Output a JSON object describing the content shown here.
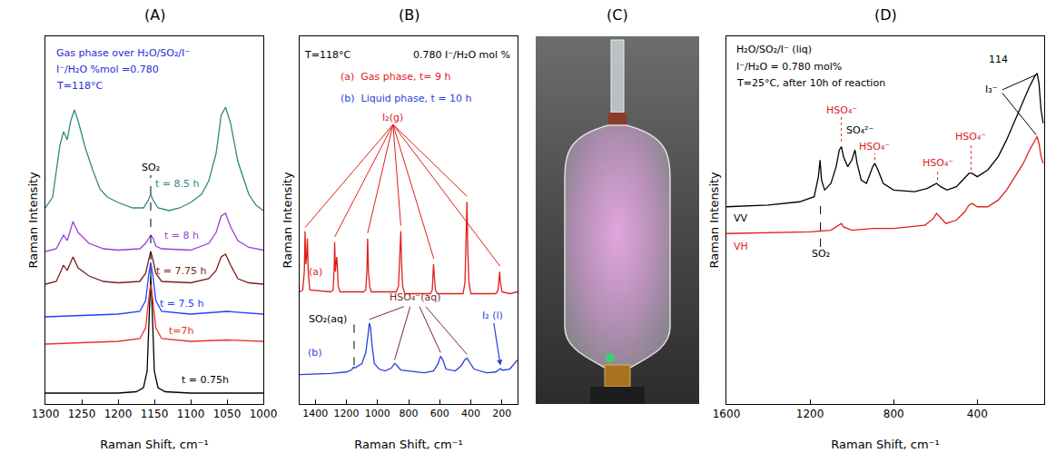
{
  "chart_data": [
    {
      "type": "line",
      "title": "(A)",
      "x_label": "Raman Shift, cm⁻¹",
      "y_label": "Raman Intensity",
      "xlim": [
        1300,
        1000
      ],
      "xticks": [
        1300,
        1250,
        1200,
        1150,
        1100,
        1050,
        1000
      ],
      "ylim": [
        0,
        135
      ],
      "grid": false,
      "tick_labels": "x",
      "notes": [
        {
          "text": "Gas phase over H₂O/SO₂/I⁻",
          "x": 1288,
          "y": 129,
          "color": "#2b2bd6"
        },
        {
          "text": "I⁻/H₂O %mol =0.780",
          "x": 1288,
          "y": 123,
          "color": "#2b2bd6"
        },
        {
          "text": "T=118°C",
          "x": 1288,
          "y": 117,
          "color": "#2b2bd6"
        }
      ],
      "annotations": [
        {
          "text": "SO₂",
          "x": 1155,
          "y": 87,
          "color": "#000000",
          "line_style": "dashed",
          "lines": [
            [
              1155,
              47,
              1155,
              84
            ]
          ]
        }
      ],
      "series": [
        {
          "name": "t = 0.75h",
          "color": "#000000",
          "label_at": [
            1080,
            9
          ],
          "x": [
            1300,
            1200,
            1175,
            1165,
            1160,
            1157,
            1155,
            1153,
            1150,
            1145,
            1135,
            1100,
            1000
          ],
          "values": [
            4,
            4,
            4.5,
            6,
            12,
            35,
            47,
            35,
            12,
            6,
            4.5,
            4,
            4
          ]
        },
        {
          "name": "t=7h",
          "color": "#e8322c",
          "label_at": [
            1112,
            27
          ],
          "x": [
            1300,
            1250,
            1200,
            1170,
            1162,
            1158,
            1155,
            1152,
            1148,
            1140,
            1100,
            1050,
            1000
          ],
          "values": [
            22,
            22.5,
            23,
            24,
            28,
            38,
            44,
            38,
            28,
            24,
            23,
            23.5,
            23
          ]
        },
        {
          "name": "t = 7.5 h",
          "color": "#2040ff",
          "label_at": [
            1112,
            37
          ],
          "x": [
            1300,
            1250,
            1200,
            1170,
            1162,
            1158,
            1155,
            1152,
            1148,
            1140,
            1100,
            1050,
            1000
          ],
          "values": [
            32,
            32.5,
            33,
            34,
            38,
            47,
            52,
            47,
            38,
            34,
            33,
            34,
            33
          ]
        },
        {
          "name": "t = 7.75 h",
          "color": "#7b1e1e",
          "label_at": [
            1112,
            49
          ],
          "x": [
            1300,
            1285,
            1275,
            1270,
            1262,
            1255,
            1240,
            1220,
            1200,
            1170,
            1162,
            1158,
            1155,
            1152,
            1148,
            1140,
            1100,
            1075,
            1065,
            1058,
            1052,
            1045,
            1035,
            1020,
            1000
          ],
          "values": [
            44,
            45,
            51,
            49,
            54,
            50,
            47,
            45,
            44.5,
            45,
            48,
            53,
            56,
            53,
            48,
            45,
            44.5,
            46,
            49,
            54,
            55,
            51,
            46,
            44.5,
            44
          ]
        },
        {
          "name": "t = 8 h",
          "color": "#9a3fd6",
          "label_at": [
            1112,
            62
          ],
          "x": [
            1300,
            1285,
            1275,
            1270,
            1262,
            1255,
            1240,
            1220,
            1200,
            1170,
            1162,
            1158,
            1155,
            1152,
            1148,
            1140,
            1100,
            1075,
            1065,
            1058,
            1052,
            1045,
            1035,
            1020,
            1000
          ],
          "values": [
            56,
            57,
            62,
            60,
            67,
            63,
            59,
            57,
            56.5,
            57,
            59,
            61,
            62,
            61,
            58,
            57,
            56.5,
            59,
            63,
            69,
            70,
            65,
            60,
            57.5,
            56.5
          ]
        },
        {
          "name": "t = 8.5 h",
          "color": "#2e8b7f",
          "label_at": [
            1118,
            81
          ],
          "x": [
            1300,
            1290,
            1280,
            1275,
            1270,
            1265,
            1260,
            1255,
            1245,
            1235,
            1225,
            1215,
            1200,
            1180,
            1165,
            1158,
            1155,
            1152,
            1145,
            1130,
            1115,
            1100,
            1085,
            1075,
            1065,
            1058,
            1052,
            1045,
            1035,
            1020,
            1010,
            1000
          ],
          "values": [
            72,
            76,
            95,
            100,
            97,
            104,
            108,
            104,
            94,
            86,
            79,
            76,
            74,
            72,
            72,
            75,
            77,
            75,
            72,
            71,
            72,
            74,
            77,
            82,
            92,
            106,
            109,
            103,
            89,
            77,
            73,
            71
          ]
        }
      ]
    },
    {
      "type": "line",
      "title": "(B)",
      "x_label": "Raman Shift, cm⁻¹",
      "y_label": "Raman Intensity",
      "xlim": [
        1500,
        100
      ],
      "xticks": [
        1400,
        1200,
        1000,
        800,
        600,
        400,
        200
      ],
      "ylim": [
        0,
        100
      ],
      "grid": false,
      "tick_labels": "x",
      "notes": [
        {
          "text": "T=118°C",
          "x": 1480,
          "y": 95,
          "color": "#000000"
        },
        {
          "text": "0.780 I⁻/H₂O mol %",
          "x": 780,
          "y": 95,
          "color": "#000000"
        },
        {
          "text": "(a)  Gas phase, t= 9 h",
          "x": 1250,
          "y": 89,
          "color": "#e0201b"
        },
        {
          "text": "(b)  Liquid phase, t = 10 h",
          "x": 1250,
          "y": 83,
          "color": "#2a3fd9"
        }
      ],
      "annotations": [
        {
          "text": "I₂(g)",
          "x": 900,
          "y": 78,
          "color": "#e0201b",
          "line_style": "solid",
          "lines": [
            [
              900,
              76,
              1465,
              48
            ],
            [
              900,
              76,
              1274,
              45.5
            ],
            [
              900,
              76,
              1063,
              46.5
            ],
            [
              900,
              76,
              850,
              48.5
            ],
            [
              900,
              76,
              638,
              39.5
            ],
            [
              900,
              76,
              425,
              56.5
            ],
            [
              900,
              76,
              213,
              37.5
            ]
          ]
        },
        {
          "text": "HSO₄⁻(aq)",
          "x": 760,
          "y": 29,
          "color": "#7a2a2a",
          "line_style": "solid",
          "lines": [
            [
              830,
              26.5,
              1052,
              23
            ],
            [
              790,
              26.5,
              890,
              12
            ],
            [
              730,
              26.5,
              595,
              14
            ],
            [
              690,
              26.5,
              425,
              13.5
            ]
          ]
        },
        {
          "text": "SO₂(aq)",
          "x": 1320,
          "y": 23,
          "color": "#000000",
          "line_style": "dashed",
          "lines": [
            [
              1150,
              10.5,
              1150,
              22
            ]
          ]
        },
        {
          "text": "I₂ (l)",
          "x": 260,
          "y": 24,
          "color": "#2a3fd9",
          "arrow": [
            210,
            10.5
          ]
        }
      ],
      "series": [
        {
          "name": "(a)",
          "color": "#e0201b",
          "label_at": [
            1400,
            36
          ],
          "x": [
            1500,
            1480,
            1470,
            1465,
            1460,
            1455,
            1450,
            1445,
            1435,
            1300,
            1285,
            1278,
            1275,
            1270,
            1262,
            1258,
            1252,
            1240,
            1090,
            1075,
            1068,
            1063,
            1058,
            1050,
            1040,
            880,
            865,
            855,
            850,
            845,
            838,
            825,
            660,
            648,
            640,
            635,
            628,
            615,
            450,
            438,
            430,
            425,
            420,
            412,
            400,
            240,
            225,
            215,
            210,
            200,
            150,
            100
          ],
          "values": [
            30.5,
            31,
            36,
            47,
            38,
            40,
            45,
            36,
            31,
            30.5,
            31,
            37,
            44,
            36,
            40,
            38,
            32,
            30.5,
            30.5,
            31,
            36,
            45,
            36,
            32,
            30.5,
            30.5,
            32,
            40,
            47,
            38,
            32,
            30,
            30,
            31,
            38,
            35,
            31,
            30,
            30,
            33,
            45,
            55,
            42,
            33,
            30,
            30,
            31,
            36,
            33,
            30.5,
            30,
            30.5
          ]
        },
        {
          "name": "(b)",
          "color": "#2a3fd9",
          "label_at": [
            1400,
            14
          ],
          "x": [
            1500,
            1300,
            1200,
            1165,
            1155,
            1145,
            1100,
            1075,
            1060,
            1052,
            1045,
            1035,
            1020,
            990,
            950,
            910,
            890,
            875,
            850,
            700,
            640,
            610,
            595,
            580,
            560,
            500,
            460,
            440,
            425,
            410,
            380,
            300,
            240,
            220,
            210,
            195,
            150,
            120,
            100
          ],
          "values": [
            8,
            8.3,
            8.7,
            9.3,
            10,
            9.8,
            11,
            14,
            19,
            22,
            21,
            16,
            11,
            9.5,
            9,
            9.8,
            11,
            10.5,
            9.2,
            8.5,
            9,
            11,
            13,
            12,
            9.5,
            9,
            10.5,
            12,
            12.5,
            11.5,
            9.5,
            8.5,
            8.7,
            9.3,
            9.6,
            9.2,
            9.5,
            11,
            12
          ]
        }
      ]
    },
    {
      "type": "image",
      "title": "(C)"
    },
    {
      "type": "line",
      "title": "(D)",
      "x_label": "Raman Shift, cm⁻¹",
      "y_label": "Raman Intensity",
      "xlim": [
        1600,
        80
      ],
      "xticks": [
        1600,
        1200,
        800,
        400
      ],
      "ylim": [
        0,
        110
      ],
      "grid": false,
      "tick_labels": "x",
      "notes": [
        {
          "text": "H₂O/SO₂/I⁻ (liq)",
          "x": 1560,
          "y": 106,
          "color": "#000000"
        },
        {
          "text": "I⁻/H₂O = 0.780 mol%",
          "x": 1560,
          "y": 101,
          "color": "#000000"
        },
        {
          "text": "T=25°C, after 10h of reaction",
          "x": 1560,
          "y": 96,
          "color": "#000000"
        }
      ],
      "annotations": [
        {
          "text": "114",
          "x": 300,
          "y": 103,
          "color": "#000000"
        },
        {
          "text": "I₃⁻",
          "x": 330,
          "y": 94,
          "color": "#000000",
          "line_style": "solid",
          "lines": [
            [
              280,
              94,
              118,
              98.5
            ],
            [
              280,
              93,
              118,
              80.5
            ]
          ]
        },
        {
          "text": "HSO₄⁻",
          "x": 1050,
          "y": 88,
          "color": "#e02020",
          "line_style": "dotted",
          "lines": [
            [
              1050,
              78.5,
              1050,
              86
            ]
          ]
        },
        {
          "text": "SO₄²⁻",
          "x": 960,
          "y": 82,
          "color": "#000000"
        },
        {
          "text": "HSO₄⁻",
          "x": 890,
          "y": 77,
          "color": "#e02020",
          "line_style": "dotted",
          "lines": [
            [
              890,
              73,
              890,
              75
            ]
          ]
        },
        {
          "text": "HSO₄⁻",
          "x": 590,
          "y": 72,
          "color": "#e02020",
          "line_style": "dotted",
          "lines": [
            [
              590,
              67,
              590,
              70
            ]
          ]
        },
        {
          "text": "HSO₄⁻",
          "x": 430,
          "y": 80,
          "color": "#e02020",
          "line_style": "dotted",
          "lines": [
            [
              430,
              70,
              430,
              78
            ]
          ]
        },
        {
          "text": "SO₂",
          "x": 1150,
          "y": 45,
          "color": "#000000",
          "line_style": "dashed",
          "lines": [
            [
              1150,
              47,
              1150,
              61
            ]
          ]
        }
      ],
      "series": [
        {
          "name": "VV",
          "color": "#000000",
          "label_at": [
            1530,
            55.5
          ],
          "x": [
            1600,
            1400,
            1250,
            1180,
            1160,
            1152,
            1145,
            1130,
            1100,
            1075,
            1060,
            1050,
            1040,
            1020,
            1000,
            985,
            975,
            955,
            930,
            900,
            890,
            875,
            850,
            800,
            700,
            640,
            610,
            595,
            575,
            545,
            500,
            460,
            440,
            425,
            400,
            350,
            300,
            260,
            220,
            180,
            150,
            125,
            114,
            105,
            95,
            85
          ],
          "values": [
            59,
            59.5,
            60.5,
            62,
            68,
            73,
            67,
            64,
            66,
            71,
            76,
            77,
            74,
            71,
            73,
            76,
            72,
            67,
            66,
            71,
            72,
            70,
            66,
            64,
            63.5,
            64.5,
            65.5,
            66,
            65,
            64,
            65,
            67.5,
            69,
            69,
            68,
            70,
            74,
            79,
            85,
            91,
            95,
            98,
            99,
            96,
            88,
            84
          ]
        },
        {
          "name": "VH",
          "color": "#e0201b",
          "label_at": [
            1530,
            47
          ],
          "x": [
            1600,
            1400,
            1200,
            1100,
            1060,
            1050,
            1040,
            1000,
            900,
            800,
            650,
            610,
            595,
            580,
            550,
            500,
            460,
            440,
            425,
            400,
            350,
            300,
            260,
            220,
            180,
            150,
            125,
            114,
            105,
            95,
            85
          ],
          "values": [
            51,
            51.2,
            51.5,
            52,
            53.5,
            54,
            53,
            52,
            52.5,
            52.5,
            53.5,
            55.5,
            57,
            56,
            54,
            55,
            57.5,
            59.5,
            60,
            59,
            59,
            61,
            64,
            68,
            72,
            76,
            79,
            80,
            78,
            74,
            72
          ]
        }
      ]
    }
  ]
}
